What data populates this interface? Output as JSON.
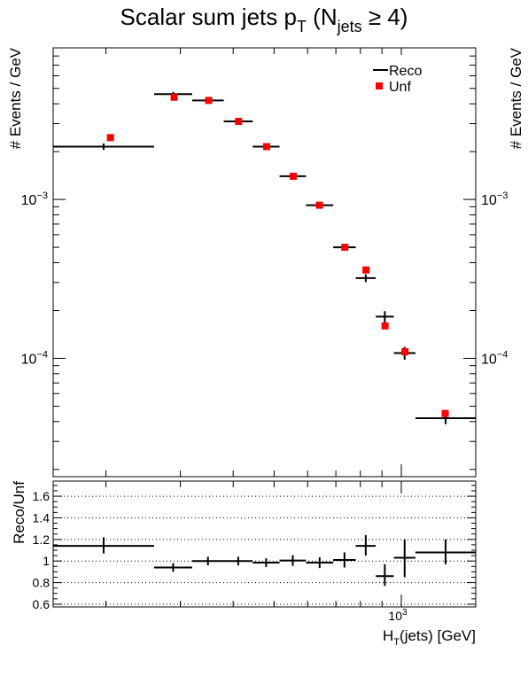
{
  "chart_data": [
    {
      "type": "scatter",
      "title": "Scalar sum jets p_T (N_jets ≥ 4)",
      "title_parts": {
        "main": "Scalar sum jets p",
        "sub_t": "T",
        "open": " (N",
        "sub_jets": "jets",
        "rel": " ≥ 4)"
      },
      "ylabel": "# Events / GeV",
      "yscale": "log",
      "ylim": [
        1.8e-05,
        0.009
      ],
      "xscale": "log",
      "xlim": [
        150,
        1500
      ],
      "legend": {
        "position": "top-right",
        "entries": [
          "Reco",
          "Unf"
        ]
      },
      "y_ticks": [
        {
          "value": 0.001,
          "base": "10",
          "exp": "−3"
        },
        {
          "value": 0.0001,
          "base": "10",
          "exp": "−4"
        }
      ],
      "series": [
        {
          "name": "Reco",
          "style": "cross",
          "color": "#000000",
          "points": [
            {
              "xlo": 150,
              "xhi": 260,
              "y": 0.00215,
              "ylo": 0.00205,
              "yhi": 0.00225
            },
            {
              "xlo": 260,
              "xhi": 320,
              "y": 0.0046,
              "ylo": 0.00445,
              "yhi": 0.00475
            },
            {
              "xlo": 320,
              "xhi": 380,
              "y": 0.0042,
              "ylo": 0.00407,
              "yhi": 0.00433
            },
            {
              "xlo": 380,
              "xhi": 445,
              "y": 0.0031,
              "ylo": 0.003,
              "yhi": 0.0032
            },
            {
              "xlo": 445,
              "xhi": 515,
              "y": 0.00215,
              "ylo": 0.00208,
              "yhi": 0.00222
            },
            {
              "xlo": 515,
              "xhi": 595,
              "y": 0.0014,
              "ylo": 0.00135,
              "yhi": 0.00145
            },
            {
              "xlo": 595,
              "xhi": 690,
              "y": 0.00092,
              "ylo": 0.00089,
              "yhi": 0.00095
            },
            {
              "xlo": 690,
              "xhi": 780,
              "y": 0.0005,
              "ylo": 0.00048,
              "yhi": 0.00052
            },
            {
              "xlo": 780,
              "xhi": 870,
              "y": 0.00032,
              "ylo": 0.000302,
              "yhi": 0.000338
            },
            {
              "xlo": 870,
              "xhi": 960,
              "y": 0.000183,
              "ylo": 0.000168,
              "yhi": 0.000198
            },
            {
              "xlo": 960,
              "xhi": 1080,
              "y": 0.000108,
              "ylo": 9.8e-05,
              "yhi": 0.000118
            },
            {
              "xlo": 1080,
              "xhi": 1500,
              "y": 4.2e-05,
              "ylo": 3.85e-05,
              "yhi": 4.55e-05
            }
          ]
        },
        {
          "name": "Unf",
          "style": "square",
          "color": "#ff0000",
          "points": [
            {
              "x": 205,
              "y": 0.00245
            },
            {
              "x": 290,
              "y": 0.0044
            },
            {
              "x": 350,
              "y": 0.0042
            },
            {
              "x": 412,
              "y": 0.0031
            },
            {
              "x": 480,
              "y": 0.00215
            },
            {
              "x": 555,
              "y": 0.0014
            },
            {
              "x": 640,
              "y": 0.00092
            },
            {
              "x": 735,
              "y": 0.0005
            },
            {
              "x": 825,
              "y": 0.00036
            },
            {
              "x": 915,
              "y": 0.00016
            },
            {
              "x": 1020,
              "y": 0.00011
            },
            {
              "x": 1270,
              "y": 4.5e-05
            }
          ]
        }
      ]
    },
    {
      "type": "scatter",
      "ylabel": "Reco/Unf",
      "xlabel": "H_T(jets) [GeV]",
      "xlabel_parts": {
        "h": "H",
        "sub": "T",
        "rest": "(jets) [GeV]"
      },
      "xscale": "log",
      "xlim": [
        150,
        1500
      ],
      "ylim": [
        0.575,
        1.74
      ],
      "grid": "horizontal dotted",
      "y_ticks": [
        0.6,
        0.8,
        1,
        1.2,
        1.4,
        1.6
      ],
      "y_tick_labels": [
        "0.6",
        "0.8",
        "1",
        "1.2",
        "1.4",
        "1.6"
      ],
      "x_tick_label": {
        "value": 1000,
        "base": "10",
        "exp": "3"
      },
      "series": [
        {
          "style": "cross",
          "color": "#000000",
          "points": [
            {
              "xlo": 150,
              "xhi": 260,
              "y": 1.14,
              "ylo": 1.07,
              "yhi": 1.22
            },
            {
              "xlo": 260,
              "xhi": 320,
              "y": 0.94,
              "ylo": 0.9,
              "yhi": 0.98
            },
            {
              "xlo": 320,
              "xhi": 380,
              "y": 1.0,
              "ylo": 0.96,
              "yhi": 1.04
            },
            {
              "xlo": 380,
              "xhi": 445,
              "y": 1.0,
              "ylo": 0.96,
              "yhi": 1.04
            },
            {
              "xlo": 445,
              "xhi": 515,
              "y": 0.985,
              "ylo": 0.945,
              "yhi": 1.025
            },
            {
              "xlo": 515,
              "xhi": 595,
              "y": 1.005,
              "ylo": 0.955,
              "yhi": 1.055
            },
            {
              "xlo": 595,
              "xhi": 690,
              "y": 0.985,
              "ylo": 0.935,
              "yhi": 1.035
            },
            {
              "xlo": 690,
              "xhi": 780,
              "y": 1.01,
              "ylo": 0.94,
              "yhi": 1.08
            },
            {
              "xlo": 780,
              "xhi": 870,
              "y": 1.14,
              "ylo": 1.05,
              "yhi": 1.24
            },
            {
              "xlo": 870,
              "xhi": 960,
              "y": 0.86,
              "ylo": 0.77,
              "yhi": 0.97
            },
            {
              "xlo": 960,
              "xhi": 1080,
              "y": 1.03,
              "ylo": 0.85,
              "yhi": 1.2
            },
            {
              "xlo": 1080,
              "xhi": 1500,
              "y": 1.08,
              "ylo": 0.97,
              "yhi": 1.2
            }
          ]
        }
      ]
    }
  ]
}
